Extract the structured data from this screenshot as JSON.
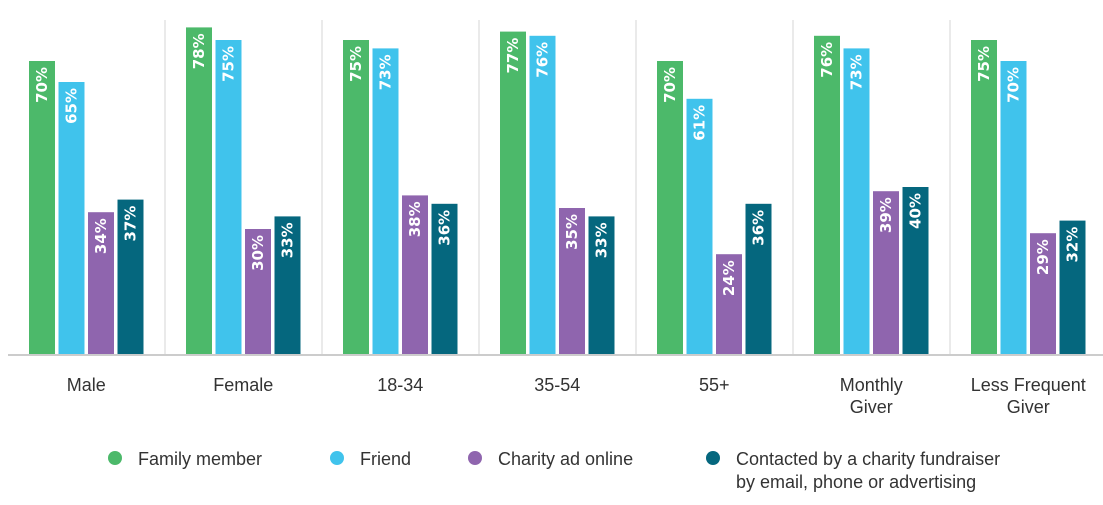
{
  "chart_data": {
    "type": "bar",
    "categories": [
      [
        "Male"
      ],
      [
        "Female"
      ],
      [
        "18-34"
      ],
      [
        "35-54"
      ],
      [
        "55+"
      ],
      [
        "Monthly",
        "Giver"
      ],
      [
        "Less Frequent",
        "Giver"
      ]
    ],
    "series": [
      {
        "name": "Family member",
        "color": "#4cb96a",
        "values": [
          70,
          78,
          75,
          77,
          70,
          76,
          75
        ]
      },
      {
        "name": "Friend",
        "color": "#40c3ec",
        "values": [
          65,
          75,
          73,
          76,
          61,
          73,
          70
        ]
      },
      {
        "name": "Charity ad online",
        "color": "#8f65ae",
        "values": [
          34,
          30,
          38,
          35,
          24,
          39,
          29
        ]
      },
      {
        "name": [
          "Contacted by a charity fundraiser",
          "by email, phone or advertising"
        ],
        "color": "#05677e",
        "values": [
          37,
          33,
          36,
          33,
          36,
          40,
          32
        ]
      }
    ],
    "value_suffix": "%",
    "ylim": [
      0,
      80
    ],
    "grid": false,
    "legend_position": "bottom"
  }
}
